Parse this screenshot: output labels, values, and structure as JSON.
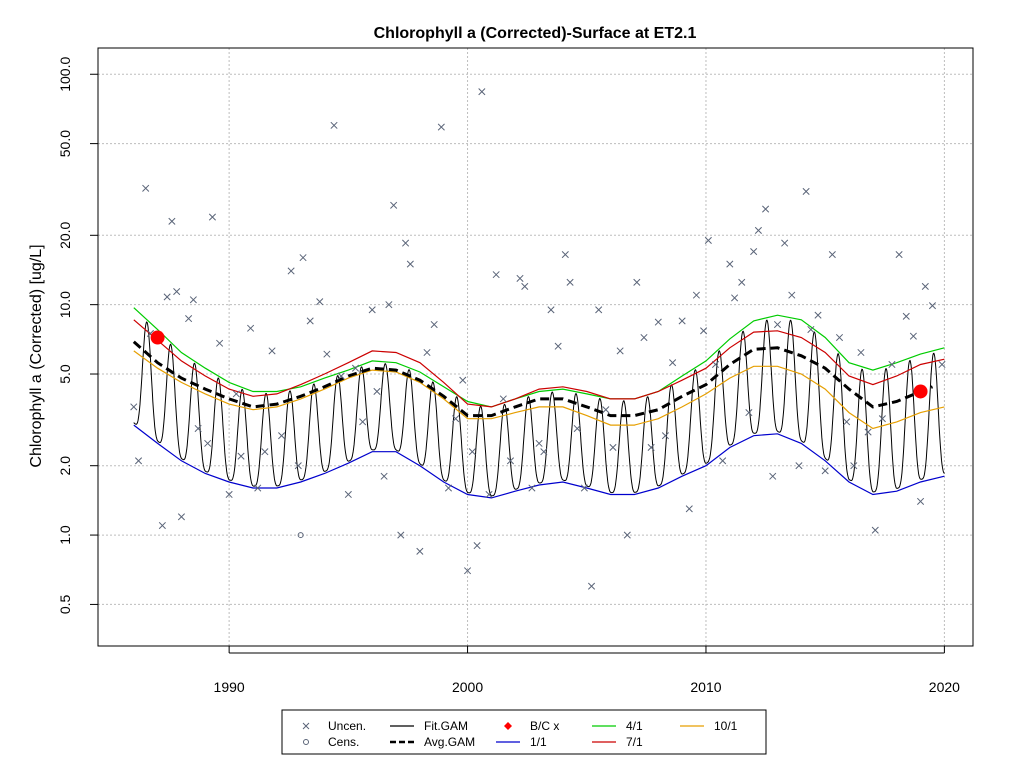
{
  "chart_data": {
    "type": "line",
    "title": "Chlorophyll a (Corrected)-Surface at ET2.1",
    "xlabel": "",
    "ylabel": "Chlorophyll a (Corrected) [ug/L]",
    "y_scale": "log",
    "xlim": [
      1984.5,
      2021.2
    ],
    "ylim": [
      0.33,
      130
    ],
    "x_ticks": [
      1990,
      2000,
      2010,
      2020
    ],
    "x_tick_labels": [
      "1990",
      "2000",
      "2010",
      "2020"
    ],
    "y_ticks": [
      0.5,
      1.0,
      2.0,
      5.0,
      10.0,
      20.0,
      50.0,
      100.0
    ],
    "y_tick_labels": [
      "0.5",
      "1.0",
      "2.0",
      "5.0",
      "10.0",
      "20.0",
      "50.0",
      "100.0"
    ],
    "grid": true,
    "legend_placement": "bottom-center",
    "legend": [
      {
        "label": "Uncen.",
        "symbol": "x",
        "color": "#5a6478"
      },
      {
        "label": "Cens.",
        "symbol": "circle",
        "color": "#5a6478"
      },
      {
        "label": "Fit.GAM",
        "symbol": "line",
        "color": "#000000"
      },
      {
        "label": "Avg.GAM",
        "symbol": "dashed",
        "color": "#000000"
      },
      {
        "label": "B/C x",
        "symbol": "diamond",
        "color": "#ff0000"
      },
      {
        "label": "1/1",
        "symbol": "line",
        "color": "#0000cd"
      },
      {
        "label": "4/1",
        "symbol": "line",
        "color": "#00cc00"
      },
      {
        "label": "7/1",
        "symbol": "line",
        "color": "#cc0000"
      },
      {
        "label": "10/1",
        "symbol": "line",
        "color": "#e69f00"
      }
    ],
    "series": [
      {
        "name": "Avg.GAM",
        "color": "#000000",
        "x": [
          1986.0,
          1987.0,
          1988.0,
          1989.0,
          1990.0,
          1991.0,
          1992.0,
          1993.0,
          1994.0,
          1995.0,
          1996.0,
          1997.0,
          1998.0,
          1999.0,
          2000.0,
          2001.0,
          2002.0,
          2003.0,
          2004.0,
          2005.0,
          2006.0,
          2007.0,
          2008.0,
          2009.0,
          2010.0,
          2011.0,
          2012.0,
          2013.0,
          2014.0,
          2015.0,
          2016.0,
          2017.0,
          2018.0,
          2019.0,
          2019.5
        ],
        "y": [
          6.9,
          5.6,
          4.8,
          4.3,
          3.9,
          3.6,
          3.7,
          4.0,
          4.4,
          4.9,
          5.3,
          5.2,
          4.7,
          4.0,
          3.3,
          3.3,
          3.6,
          3.9,
          3.9,
          3.6,
          3.3,
          3.3,
          3.5,
          4.0,
          4.5,
          5.5,
          6.4,
          6.5,
          6.0,
          5.3,
          4.3,
          3.6,
          3.8,
          4.2,
          4.4
        ]
      },
      {
        "name": "1/1",
        "color": "#0000cd",
        "x": [
          1986.0,
          1987.0,
          1988.0,
          1989.0,
          1990.0,
          1991.0,
          1992.0,
          1993.0,
          1994.0,
          1995.0,
          1996.0,
          1997.0,
          1998.0,
          1999.0,
          2000.0,
          2001.0,
          2002.0,
          2003.0,
          2004.0,
          2005.0,
          2006.0,
          2007.0,
          2008.0,
          2009.0,
          2010.0,
          2011.0,
          2012.0,
          2013.0,
          2014.0,
          2015.0,
          2016.0,
          2017.0,
          2018.0,
          2019.0,
          2020.0
        ],
        "y": [
          3.0,
          2.5,
          2.1,
          1.85,
          1.7,
          1.6,
          1.6,
          1.7,
          1.85,
          2.05,
          2.3,
          2.3,
          2.0,
          1.7,
          1.5,
          1.45,
          1.55,
          1.65,
          1.7,
          1.6,
          1.5,
          1.5,
          1.6,
          1.8,
          2.0,
          2.4,
          2.7,
          2.75,
          2.5,
          2.1,
          1.7,
          1.5,
          1.55,
          1.7,
          1.8
        ]
      },
      {
        "name": "4/1",
        "color": "#00cc00",
        "x": [
          1986.0,
          1987.0,
          1988.0,
          1989.0,
          1990.0,
          1991.0,
          1992.0,
          1993.0,
          1994.0,
          1995.0,
          1996.0,
          1997.0,
          1998.0,
          1999.0,
          2000.0,
          2001.0,
          2002.0,
          2003.0,
          2004.0,
          2005.0,
          2006.0,
          2007.0,
          2008.0,
          2009.0,
          2010.0,
          2011.0,
          2012.0,
          2013.0,
          2014.0,
          2015.0,
          2016.0,
          2017.0,
          2018.0,
          2019.0,
          2020.0
        ],
        "y": [
          9.7,
          7.8,
          6.2,
          5.3,
          4.6,
          4.2,
          4.2,
          4.4,
          4.8,
          5.2,
          5.7,
          5.6,
          5.1,
          4.4,
          3.8,
          3.6,
          3.9,
          4.2,
          4.3,
          4.1,
          3.9,
          3.9,
          4.2,
          4.9,
          5.7,
          7.1,
          8.5,
          9.0,
          8.6,
          7.2,
          5.6,
          5.2,
          5.6,
          6.1,
          6.5
        ]
      },
      {
        "name": "7/1",
        "color": "#cc0000",
        "x": [
          1986.0,
          1987.0,
          1988.0,
          1989.0,
          1990.0,
          1991.0,
          1992.0,
          1993.0,
          1994.0,
          1995.0,
          1996.0,
          1997.0,
          1998.0,
          1999.0,
          2000.0,
          2001.0,
          2002.0,
          2003.0,
          2004.0,
          2005.0,
          2006.0,
          2007.0,
          2008.0,
          2009.0,
          2010.0,
          2011.0,
          2012.0,
          2013.0,
          2014.0,
          2015.0,
          2016.0,
          2017.0,
          2018.0,
          2019.0,
          2020.0
        ],
        "y": [
          8.6,
          7.0,
          5.7,
          4.9,
          4.3,
          4.0,
          4.1,
          4.5,
          5.0,
          5.6,
          6.3,
          6.2,
          5.6,
          4.6,
          3.7,
          3.6,
          3.9,
          4.3,
          4.4,
          4.2,
          3.9,
          3.9,
          4.2,
          4.7,
          5.3,
          6.5,
          7.6,
          7.7,
          7.2,
          6.2,
          4.9,
          4.5,
          4.9,
          5.5,
          5.8
        ]
      },
      {
        "name": "10/1",
        "color": "#e69f00",
        "x": [
          1986.0,
          1987.0,
          1988.0,
          1989.0,
          1990.0,
          1991.0,
          1992.0,
          1993.0,
          1994.0,
          1995.0,
          1996.0,
          1997.0,
          1998.0,
          1999.0,
          2000.0,
          2001.0,
          2002.0,
          2003.0,
          2004.0,
          2005.0,
          2006.0,
          2007.0,
          2008.0,
          2009.0,
          2010.0,
          2011.0,
          2012.0,
          2013.0,
          2014.0,
          2015.0,
          2016.0,
          2017.0,
          2018.0,
          2019.0,
          2020.0
        ],
        "y": [
          6.3,
          5.3,
          4.6,
          4.1,
          3.7,
          3.5,
          3.6,
          3.9,
          4.3,
          4.8,
          5.2,
          5.1,
          4.6,
          3.9,
          3.2,
          3.2,
          3.4,
          3.6,
          3.6,
          3.3,
          3.0,
          3.0,
          3.2,
          3.6,
          4.1,
          4.8,
          5.4,
          5.4,
          5.0,
          4.3,
          3.4,
          2.9,
          3.1,
          3.4,
          3.6
        ]
      }
    ],
    "fit_gam": {
      "name": "Fit.GAM",
      "color": "#000000",
      "description_of_shape": "seasonal oscillation between the 1/1 and 4/1 envelopes, one cycle per year",
      "x_start": 1986.0,
      "x_end": 2020.0
    },
    "bc_points": {
      "name": "B/C x",
      "color": "#ff0000",
      "x": [
        1987.0,
        2019.0
      ],
      "y": [
        7.2,
        4.2
      ]
    },
    "uncensored_points": {
      "name": "Uncen.",
      "x": [
        1986.0,
        1986.2,
        1986.5,
        1986.7,
        1987.2,
        1987.4,
        1987.6,
        1987.8,
        1988.0,
        1988.3,
        1988.5,
        1988.7,
        1989.1,
        1989.3,
        1989.6,
        1990.0,
        1990.3,
        1990.5,
        1990.9,
        1991.2,
        1991.5,
        1991.8,
        1992.2,
        1992.6,
        1992.9,
        1993.1,
        1993.4,
        1993.8,
        1994.1,
        1994.4,
        1994.7,
        1995.0,
        1995.3,
        1995.6,
        1996.0,
        1996.2,
        1996.5,
        1996.7,
        1996.9,
        1997.2,
        1997.4,
        1997.6,
        1998.0,
        1998.3,
        1998.6,
        1998.9,
        1999.2,
        1999.5,
        1999.8,
        2000.0,
        2000.2,
        2000.4,
        2000.6,
        2000.9,
        2001.2,
        2001.5,
        2001.8,
        2002.2,
        2002.4,
        2002.7,
        2003.0,
        2003.2,
        2003.5,
        2003.8,
        2004.1,
        2004.3,
        2004.6,
        2004.9,
        2005.2,
        2005.5,
        2005.8,
        2006.1,
        2006.4,
        2006.7,
        2007.1,
        2007.4,
        2007.7,
        2008.0,
        2008.3,
        2008.6,
        2009.0,
        2009.3,
        2009.6,
        2009.9,
        2010.1,
        2010.4,
        2010.7,
        2011.0,
        2011.2,
        2011.5,
        2011.8,
        2012.0,
        2012.2,
        2012.5,
        2012.8,
        2013.0,
        2013.3,
        2013.6,
        2013.9,
        2014.2,
        2014.4,
        2014.7,
        2015.0,
        2015.3,
        2015.6,
        2015.9,
        2016.2,
        2016.5,
        2016.8,
        2017.1,
        2017.4,
        2017.8,
        2018.1,
        2018.4,
        2018.7,
        2019.0,
        2019.2,
        2019.5,
        2019.9
      ],
      "y": [
        3.6,
        2.1,
        32.0,
        7.5,
        1.1,
        10.8,
        23.0,
        11.4,
        1.2,
        8.7,
        10.5,
        2.9,
        2.5,
        24.0,
        6.8,
        1.5,
        4.1,
        2.2,
        7.9,
        1.6,
        2.3,
        6.3,
        2.7,
        14.0,
        2.0,
        16.0,
        8.5,
        10.3,
        6.1,
        60.0,
        4.9,
        1.5,
        5.3,
        3.1,
        9.5,
        4.2,
        1.8,
        10.0,
        27.0,
        1.0,
        18.5,
        15.0,
        0.85,
        6.2,
        8.2,
        59.0,
        1.6,
        3.2,
        4.7,
        0.7,
        2.3,
        0.9,
        84.0,
        1.5,
        13.5,
        3.9,
        2.1,
        13.0,
        12.0,
        1.6,
        2.5,
        2.3,
        9.5,
        6.6,
        16.5,
        12.5,
        2.9,
        1.6,
        0.6,
        9.5,
        3.5,
        2.4,
        6.3,
        1.0,
        12.5,
        7.2,
        2.4,
        8.4,
        2.7,
        5.6,
        8.5,
        1.3,
        11.0,
        7.7,
        19.0,
        5.5,
        2.1,
        15.0,
        10.7,
        12.5,
        3.4,
        17.0,
        21.0,
        26.0,
        1.8,
        8.2,
        18.5,
        11.0,
        2.0,
        31.0,
        7.8,
        9.0,
        1.9,
        16.5,
        7.2,
        3.1,
        2.0,
        6.2,
        2.8,
        1.05,
        3.2,
        5.5,
        16.5,
        8.9,
        7.3,
        1.4,
        12.0,
        9.9,
        5.5
      ]
    },
    "censored_points": {
      "name": "Cens.",
      "x": [
        1993.0
      ],
      "y": [
        1.0
      ]
    }
  }
}
